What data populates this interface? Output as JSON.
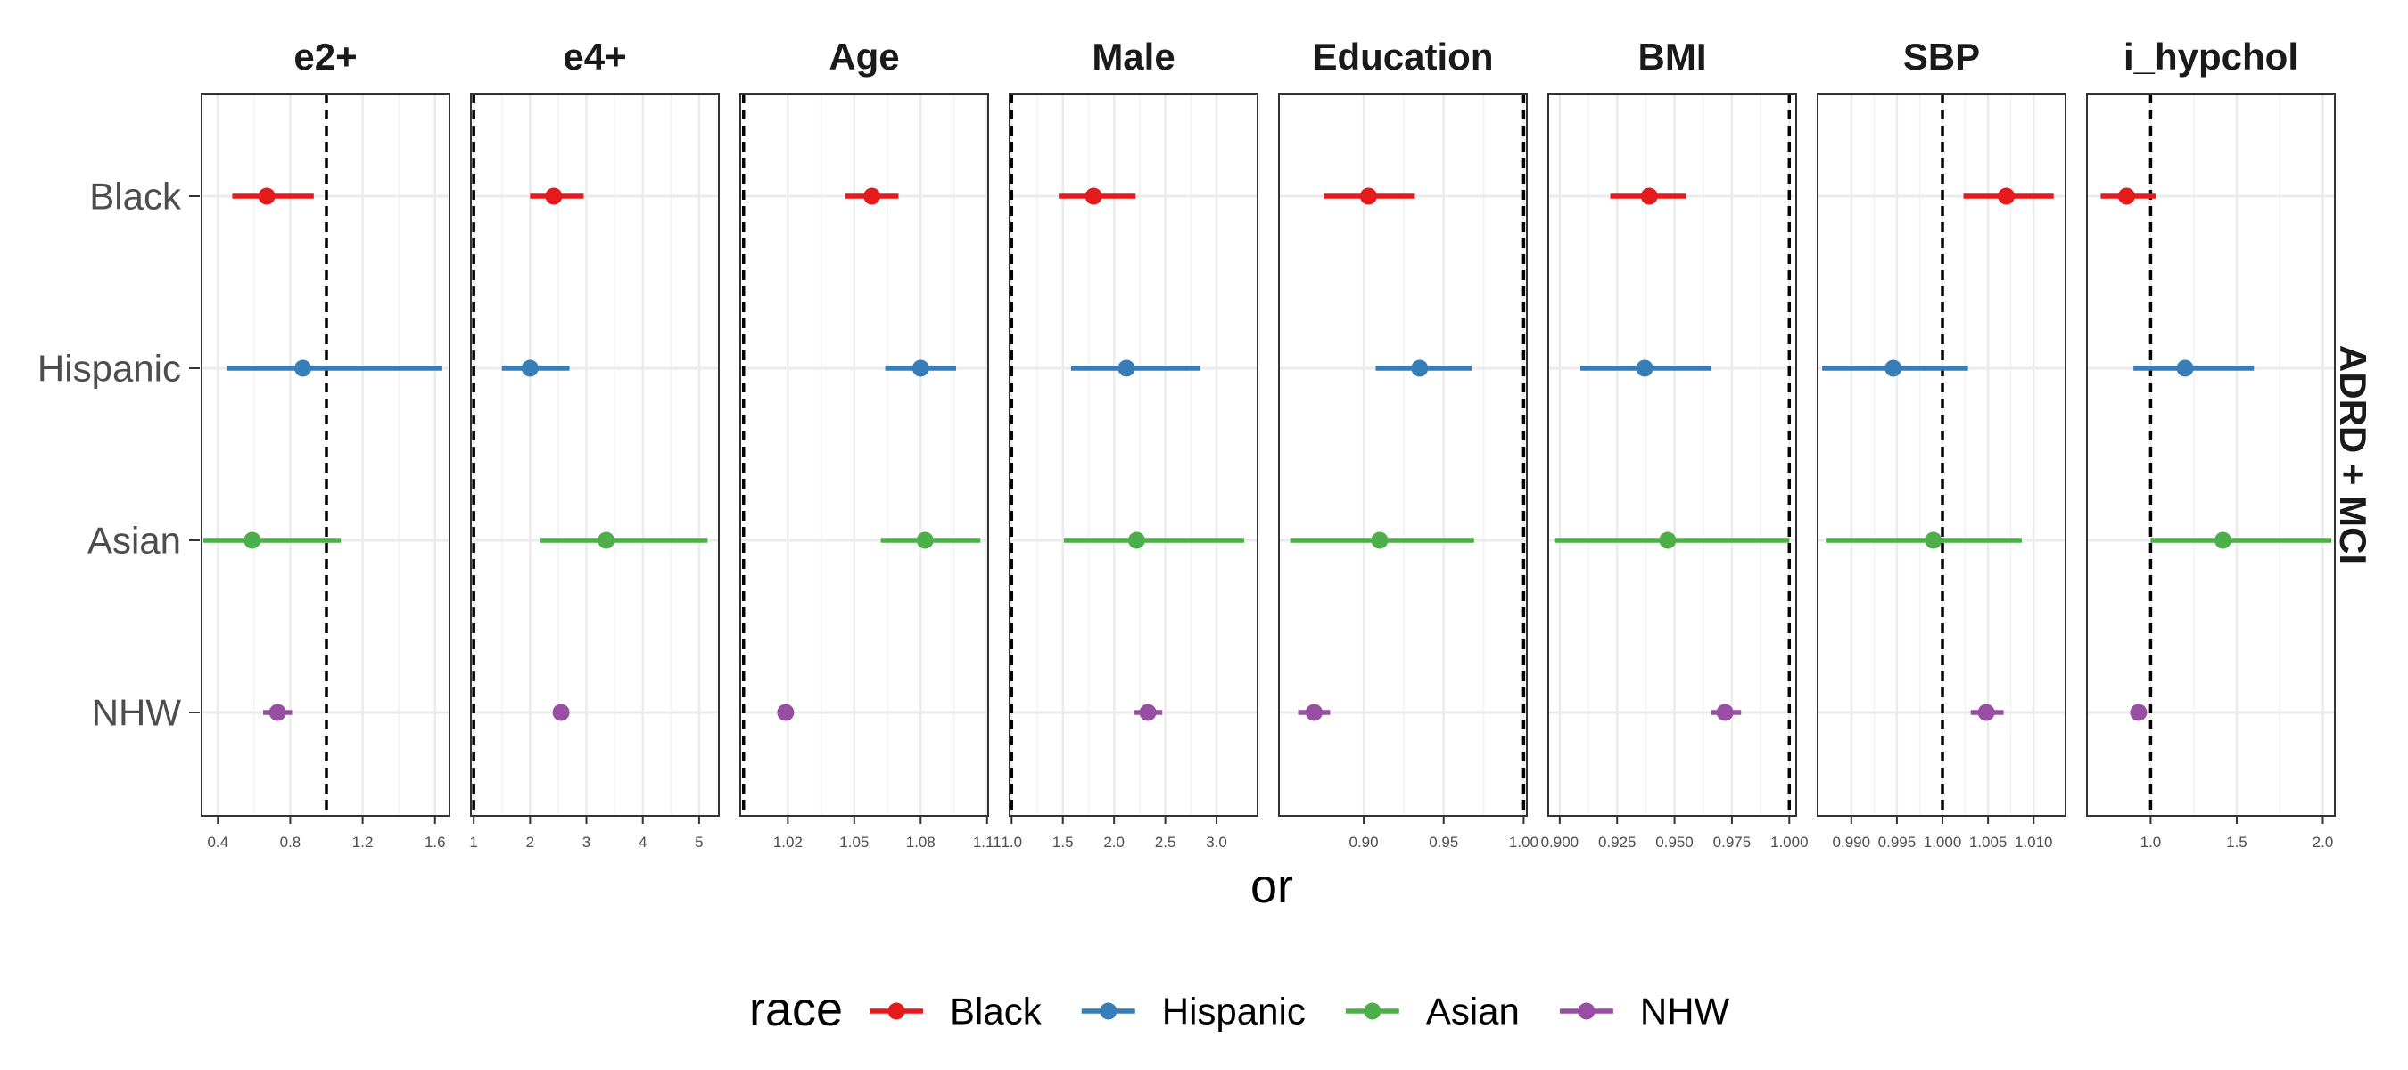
{
  "chart_data": {
    "type": "forest",
    "xlabel": "or",
    "strip_label": "ADRD + MCI",
    "legend": {
      "title": "race",
      "placement": "bottom",
      "entries": [
        "Black",
        "Hispanic",
        "Asian",
        "NHW"
      ]
    },
    "categories": [
      "Black",
      "Hispanic",
      "Asian",
      "NHW"
    ],
    "colors": {
      "Black": "#e41a1c",
      "Hispanic": "#377eb8",
      "Asian": "#4daf4a",
      "NHW": "#984ea3"
    },
    "reference_line": 1.0,
    "grid": true,
    "panels": [
      {
        "title": "e2+",
        "xlim": [
          0.31,
          1.68
        ],
        "ticks": [
          0.4,
          0.8,
          1.2,
          1.6
        ],
        "tick_labels": [
          "0.4",
          "0.8",
          "1.2",
          "1.6"
        ],
        "points": [
          {
            "race": "Black",
            "or": 0.67,
            "lo": 0.48,
            "hi": 0.93
          },
          {
            "race": "Hispanic",
            "or": 0.87,
            "lo": 0.45,
            "hi": 1.64
          },
          {
            "race": "Asian",
            "or": 0.59,
            "lo": 0.32,
            "hi": 1.08
          },
          {
            "race": "NHW",
            "or": 0.73,
            "lo": 0.65,
            "hi": 0.81
          }
        ]
      },
      {
        "title": "e4+",
        "xlim": [
          0.95,
          5.35
        ],
        "ticks": [
          1,
          2,
          3,
          4,
          5
        ],
        "tick_labels": [
          "1",
          "2",
          "3",
          "4",
          "5"
        ],
        "points": [
          {
            "race": "Black",
            "or": 2.42,
            "lo": 2.0,
            "hi": 2.95
          },
          {
            "race": "Hispanic",
            "or": 2.0,
            "lo": 1.5,
            "hi": 2.7
          },
          {
            "race": "Asian",
            "or": 3.35,
            "lo": 2.18,
            "hi": 5.15
          },
          {
            "race": "NHW",
            "or": 2.55,
            "lo": 2.45,
            "hi": 2.65
          }
        ]
      },
      {
        "title": "Age",
        "xlim": [
          0.9985,
          1.1105
        ],
        "ticks": [
          1.02,
          1.05,
          1.08,
          1.11
        ],
        "tick_labels": [
          "1.02",
          "1.05",
          "1.08",
          "1.11"
        ],
        "points": [
          {
            "race": "Black",
            "or": 1.058,
            "lo": 1.046,
            "hi": 1.07
          },
          {
            "race": "Hispanic",
            "or": 1.08,
            "lo": 1.064,
            "hi": 1.096
          },
          {
            "race": "Asian",
            "or": 1.082,
            "lo": 1.062,
            "hi": 1.107
          },
          {
            "race": "NHW",
            "or": 1.019,
            "lo": 1.017,
            "hi": 1.021
          }
        ]
      },
      {
        "title": "Male",
        "xlim": [
          0.98,
          3.4
        ],
        "ticks": [
          1.0,
          1.5,
          2.0,
          2.5,
          3.0
        ],
        "tick_labels": [
          "1.0",
          "1.5",
          "2.0",
          "2.5",
          "3.0"
        ],
        "points": [
          {
            "race": "Black",
            "or": 1.8,
            "lo": 1.46,
            "hi": 2.21
          },
          {
            "race": "Hispanic",
            "or": 2.12,
            "lo": 1.58,
            "hi": 2.84
          },
          {
            "race": "Asian",
            "or": 2.22,
            "lo": 1.51,
            "hi": 3.27
          },
          {
            "race": "NHW",
            "or": 2.33,
            "lo": 2.2,
            "hi": 2.47
          }
        ]
      },
      {
        "title": "Education",
        "xlim": [
          0.847,
          1.002
        ],
        "ticks": [
          0.9,
          0.95,
          1.0
        ],
        "tick_labels": [
          "0.90",
          "0.95",
          "1.00"
        ],
        "points": [
          {
            "race": "Black",
            "or": 0.903,
            "lo": 0.875,
            "hi": 0.932
          },
          {
            "race": "Hispanic",
            "or": 0.935,
            "lo": 0.9075,
            "hi": 0.9675
          },
          {
            "race": "Asian",
            "or": 0.91,
            "lo": 0.854,
            "hi": 0.969
          },
          {
            "race": "NHW",
            "or": 0.869,
            "lo": 0.859,
            "hi": 0.879
          }
        ]
      },
      {
        "title": "BMI",
        "xlim": [
          0.895,
          1.003
        ],
        "ticks": [
          0.9,
          0.925,
          0.95,
          0.975,
          1.0
        ],
        "tick_labels": [
          "0.900",
          "0.925",
          "0.950",
          "0.975",
          "1.000"
        ],
        "points": [
          {
            "race": "Black",
            "or": 0.939,
            "lo": 0.922,
            "hi": 0.955
          },
          {
            "race": "Hispanic",
            "or": 0.937,
            "lo": 0.909,
            "hi": 0.966
          },
          {
            "race": "Asian",
            "or": 0.947,
            "lo": 0.898,
            "hi": 1.0
          },
          {
            "race": "NHW",
            "or": 0.972,
            "lo": 0.966,
            "hi": 0.979
          }
        ]
      },
      {
        "title": "SBP",
        "xlim": [
          0.9863,
          1.0135
        ],
        "ticks": [
          0.99,
          0.995,
          1.0,
          1.005,
          1.01
        ],
        "tick_labels": [
          "0.990",
          "0.995",
          "1.000",
          "1.005",
          "1.010"
        ],
        "points": [
          {
            "race": "Black",
            "or": 1.007,
            "lo": 1.0023,
            "hi": 1.0122
          },
          {
            "race": "Hispanic",
            "or": 0.9946,
            "lo": 0.9868,
            "hi": 1.0028
          },
          {
            "race": "Asian",
            "or": 0.999,
            "lo": 0.9872,
            "hi": 1.0087
          },
          {
            "race": "NHW",
            "or": 1.0048,
            "lo": 1.0031,
            "hi": 1.0067
          }
        ]
      },
      {
        "title": "i_hypchol",
        "xlim": [
          0.63,
          2.07
        ],
        "ticks": [
          1.0,
          1.5,
          2.0
        ],
        "tick_labels": [
          "1.0",
          "1.5",
          "2.0"
        ],
        "points": [
          {
            "race": "Black",
            "or": 0.86,
            "lo": 0.71,
            "hi": 1.03
          },
          {
            "race": "Hispanic",
            "or": 1.2,
            "lo": 0.9,
            "hi": 1.6
          },
          {
            "race": "Asian",
            "or": 1.42,
            "lo": 1.0,
            "hi": 2.05
          },
          {
            "race": "NHW",
            "or": 0.93,
            "lo": 0.89,
            "hi": 0.97
          }
        ]
      }
    ]
  }
}
